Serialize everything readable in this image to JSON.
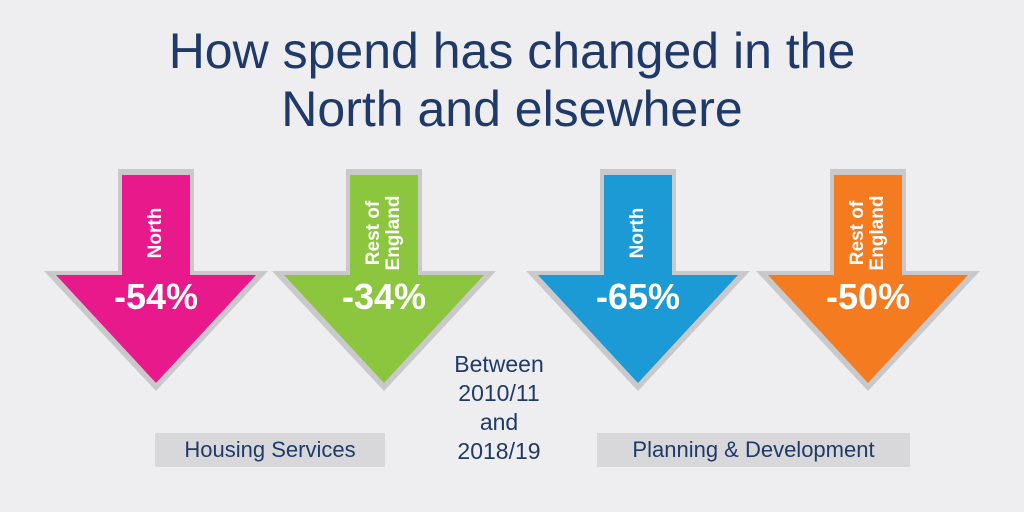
{
  "title": {
    "line1": "How spend has changed in the",
    "line2": "North and elsewhere"
  },
  "arrows": [
    {
      "region": [
        "North"
      ],
      "change": "-54%",
      "color": "#e8198a"
    },
    {
      "region": [
        "Rest of",
        "England"
      ],
      "change": "-34%",
      "color": "#8cc63f"
    },
    {
      "region": [
        "North"
      ],
      "change": "-65%",
      "color": "#1c9ad6"
    },
    {
      "region": [
        "Rest of",
        "England"
      ],
      "change": "-50%",
      "color": "#f47b20"
    }
  ],
  "categories": {
    "housing": "Housing Services",
    "planning": "Planning & Development"
  },
  "period": [
    "Between",
    "2010/11",
    "and",
    "2018/19"
  ],
  "colors": {
    "title": "#1f3a68",
    "background": "#eeeef0",
    "label_box": "#d8d8da",
    "arrow_shadow": "#c9c9cc"
  }
}
